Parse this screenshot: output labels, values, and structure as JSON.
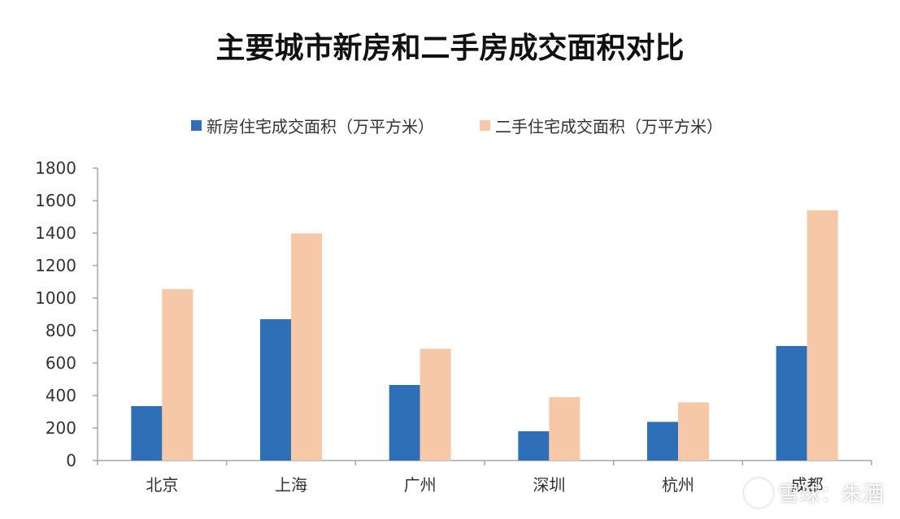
{
  "chart_data": {
    "type": "bar",
    "title": "主要城市新房和二手房成交面积对比",
    "categories": [
      "北京",
      "上海",
      "广州",
      "深圳",
      "杭州",
      "成都"
    ],
    "series": [
      {
        "name": "新房住宅成交面积（万平方米）",
        "values": [
          335,
          870,
          465,
          180,
          238,
          705
        ],
        "color": "#2e6fb7"
      },
      {
        "name": "二手住宅成交面积（万平方米）",
        "values": [
          1055,
          1398,
          688,
          390,
          358,
          1540
        ],
        "color": "#f7c8a8"
      }
    ],
    "ylim": [
      0,
      1800
    ],
    "yticks": [
      0,
      200,
      400,
      600,
      800,
      1000,
      1200,
      1400,
      1600,
      1800
    ],
    "grid": false,
    "legend_position": "top"
  },
  "watermark": {
    "text": "雪球：朱酒",
    "icon": "snowball-logo-icon"
  }
}
